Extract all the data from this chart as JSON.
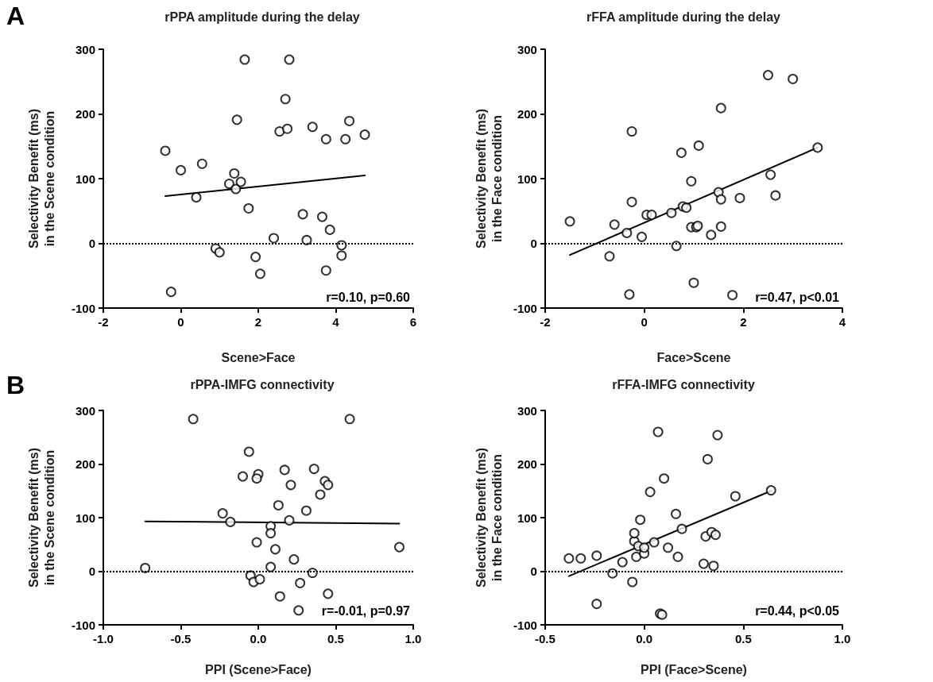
{
  "chart_data": [
    {
      "type": "scatter",
      "title": "rPPA amplitude during the delay",
      "xlabel": "Scene>Face",
      "ylabel": "Selectivity Benefit (ms)\nin the Scene condition",
      "annotations": [
        "A",
        "r=0.10, p=0.60"
      ],
      "marker": "circle",
      "grid": false,
      "xlim": [
        -2,
        6
      ],
      "xticks": [
        -2,
        0,
        2,
        4,
        6
      ],
      "ylim": [
        -100,
        300
      ],
      "yticks": [
        -100,
        0,
        100,
        200,
        300
      ],
      "ref_lines": [
        {
          "axis": "y",
          "value": 0,
          "line_style": "dotted",
          "color": "#000000"
        }
      ],
      "series": [
        {
          "color": "#000000",
          "x": [
            -0.4,
            -0.25,
            0,
            0.4,
            0.55,
            0.9,
            1.0,
            1.25,
            1.38,
            1.42,
            1.45,
            1.55,
            1.65,
            1.75,
            1.93,
            2.05,
            2.4,
            2.55,
            2.7,
            2.75,
            2.8,
            3.15,
            3.25,
            3.4,
            3.65,
            3.75,
            3.75,
            3.85,
            4.15,
            4.15,
            4.25,
            4.35,
            4.75
          ],
          "values": [
            143,
            -75,
            113,
            71,
            123,
            -8,
            -14,
            92,
            108,
            84,
            191,
            95,
            284,
            54,
            -21,
            -47,
            8,
            173,
            223,
            177,
            284,
            45,
            5,
            180,
            41,
            161,
            -42,
            21,
            -3,
            -19,
            161,
            189,
            168
          ]
        },
        {
          "type": "line",
          "marker": "none",
          "line_style": "solid",
          "color": "#000000",
          "x": [
            -0.4,
            4.75
          ],
          "values": [
            73,
            105
          ]
        }
      ]
    },
    {
      "type": "scatter",
      "title": "rFFA amplitude during the delay",
      "xlabel": "Face>Scene",
      "ylabel": "Selectivity Benefit (ms)\nin the Face condition",
      "annotations": [
        "r=0.47, p<0.01"
      ],
      "marker": "circle",
      "grid": false,
      "xlim": [
        -2,
        4
      ],
      "xticks": [
        -2,
        0,
        2,
        4
      ],
      "ylim": [
        -100,
        300
      ],
      "yticks": [
        -100,
        0,
        100,
        200,
        300
      ],
      "ref_lines": [
        {
          "axis": "y",
          "value": 0,
          "line_style": "dotted",
          "color": "#000000"
        }
      ],
      "series": [
        {
          "color": "#000000",
          "x": [
            -1.5,
            -0.7,
            -0.6,
            -0.35,
            -0.3,
            -0.25,
            -0.25,
            -0.05,
            0.05,
            0.15,
            0.55,
            0.65,
            0.75,
            0.78,
            0.85,
            0.95,
            0.95,
            1.0,
            1.05,
            1.08,
            1.1,
            1.35,
            1.5,
            1.55,
            1.55,
            1.55,
            1.93,
            1.78,
            2.5,
            2.55,
            2.65,
            3.0,
            3.5
          ],
          "values": [
            34,
            -20,
            29,
            16,
            -79,
            173,
            64,
            10,
            44,
            44,
            47,
            -4,
            140,
            57,
            55,
            96,
            25,
            -61,
            25,
            27,
            151,
            13,
            79,
            68,
            26,
            209,
            70,
            -80,
            260,
            106,
            74,
            254,
            148
          ]
        },
        {
          "type": "line",
          "marker": "none",
          "line_style": "solid",
          "color": "#000000",
          "x": [
            -1.5,
            3.5
          ],
          "values": [
            -18,
            148
          ]
        }
      ]
    },
    {
      "type": "scatter",
      "title": "rPPA-IMFG connectivity",
      "xlabel": "PPI (Scene>Face)",
      "ylabel": "Selectivity Benefit (ms)\nin the Scene condition",
      "annotations": [
        "B",
        "r=-0.01, p=0.97"
      ],
      "marker": "circle",
      "grid": false,
      "xlim": [
        -1,
        1
      ],
      "xticks": [
        {
          "value": -1,
          "label": "-1.0"
        },
        -0.5,
        {
          "value": 0,
          "label": "0.0"
        },
        0.5,
        {
          "value": 1,
          "label": "1.0"
        }
      ],
      "ylim": [
        -100,
        300
      ],
      "yticks": [
        -100,
        0,
        100,
        200,
        300
      ],
      "ref_lines": [
        {
          "axis": "y",
          "value": 0,
          "line_style": "dotted",
          "color": "#000000"
        }
      ],
      "series": [
        {
          "color": "#000000",
          "x": [
            -0.73,
            -0.42,
            -0.23,
            -0.18,
            -0.1,
            -0.06,
            -0.05,
            -0.03,
            -0.01,
            0,
            -0.01,
            0.01,
            0.08,
            0.08,
            0.08,
            0.11,
            0.13,
            0.14,
            0.17,
            0.2,
            0.21,
            0.23,
            0.27,
            0.31,
            0.35,
            0.36,
            0.4,
            0.43,
            0.45,
            0.45,
            0.26,
            0.59,
            0.91
          ],
          "values": [
            6,
            284,
            108,
            92,
            177,
            223,
            -8,
            -20,
            54,
            181,
            173,
            -15,
            84,
            71,
            8,
            41,
            123,
            -47,
            189,
            95,
            161,
            22,
            -22,
            113,
            -3,
            191,
            143,
            168,
            161,
            -42,
            -73,
            284,
            45
          ]
        },
        {
          "type": "line",
          "marker": "none",
          "line_style": "solid",
          "color": "#000000",
          "x": [
            -0.73,
            0.91
          ],
          "values": [
            93,
            89
          ]
        }
      ]
    },
    {
      "type": "scatter",
      "title": "rFFA-IMFG connectivity",
      "xlabel": "PPI (Face>Scene)",
      "ylabel": "Selectivity Benefit (ms)\nin the Face condition",
      "annotations": [
        "r=0.44, p<0.05"
      ],
      "marker": "circle",
      "grid": false,
      "xlim": [
        -0.5,
        1
      ],
      "xticks": [
        -0.5,
        {
          "value": 0,
          "label": "0.0"
        },
        0.5,
        {
          "value": 1,
          "label": "1.0"
        }
      ],
      "ylim": [
        -100,
        300
      ],
      "yticks": [
        -100,
        0,
        100,
        200,
        300
      ],
      "ref_lines": [
        {
          "axis": "y",
          "value": 0,
          "line_style": "dotted",
          "color": "#000000"
        }
      ],
      "series": [
        {
          "color": "#000000",
          "x": [
            -0.38,
            -0.32,
            -0.24,
            -0.24,
            -0.16,
            -0.11,
            -0.06,
            -0.05,
            -0.05,
            -0.04,
            -0.03,
            -0.02,
            0,
            0,
            0.03,
            0.05,
            0.07,
            0.08,
            0.09,
            0.1,
            0.12,
            0.16,
            0.17,
            0.19,
            0.3,
            0.31,
            0.32,
            0.34,
            0.35,
            0.36,
            0.37,
            0.46,
            0.64
          ],
          "values": [
            24,
            24,
            29,
            -61,
            -4,
            17,
            -20,
            56,
            71,
            27,
            47,
            96,
            33,
            44,
            148,
            54,
            260,
            -79,
            -81,
            173,
            44,
            107,
            27,
            79,
            14,
            65,
            209,
            73,
            10,
            68,
            254,
            140,
            151
          ]
        },
        {
          "type": "line",
          "marker": "none",
          "line_style": "solid",
          "color": "#000000",
          "x": [
            -0.38,
            0.64
          ],
          "values": [
            -9,
            150
          ]
        }
      ]
    }
  ]
}
